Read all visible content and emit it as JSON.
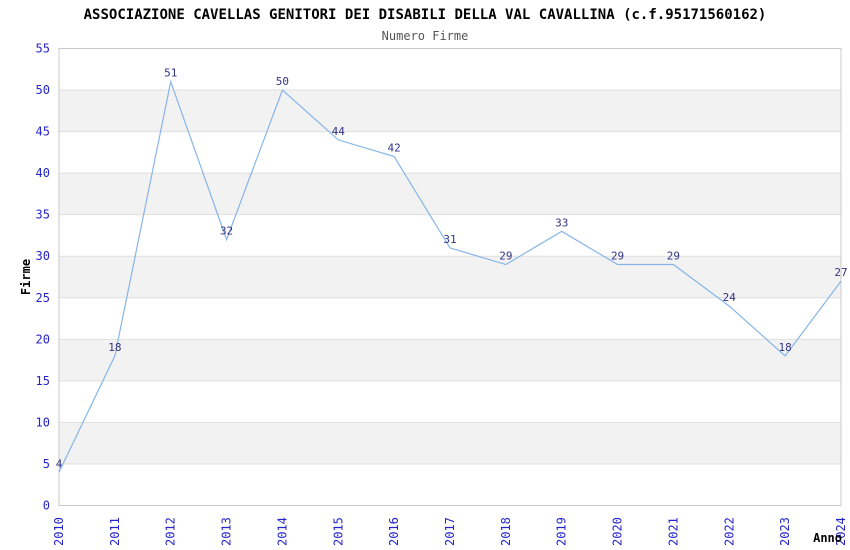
{
  "chart_data": {
    "type": "line",
    "title": "ASSOCIAZIONE CAVELLAS GENITORI DEI DISABILI DELLA VAL CAVALLINA (c.f.95171560162)",
    "subtitle": "Numero Firme",
    "x": [
      2010,
      2011,
      2012,
      2013,
      2014,
      2015,
      2016,
      2017,
      2018,
      2019,
      2020,
      2021,
      2022,
      2023,
      2024
    ],
    "values": [
      4,
      18,
      51,
      32,
      50,
      44,
      42,
      31,
      29,
      33,
      29,
      29,
      24,
      18,
      27
    ],
    "xlabel": "Anno",
    "ylabel": "Firme",
    "ylim": [
      0,
      55
    ],
    "ytick_step": 5,
    "grid": true,
    "band_stripes": true,
    "legend": "none",
    "point_labels_shown": true,
    "colors": {
      "line": "#87b5e7",
      "point_label": "#333388",
      "tick_label": "#2424cc",
      "band_fill": "#f2f2f2",
      "gridline": "#e0e0e0",
      "plot_border": "#c9c9c9",
      "subtitle_text": "#555555",
      "title_text": "#000000",
      "background": "#ffffff"
    }
  }
}
